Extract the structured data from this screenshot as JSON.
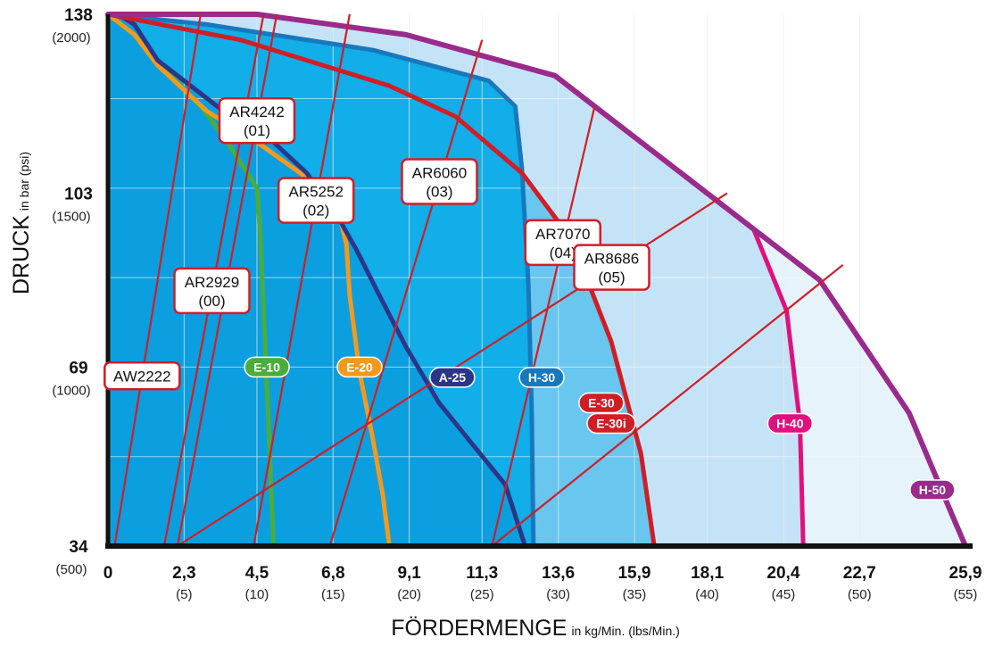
{
  "chart_data": {
    "type": "line",
    "title": "",
    "xlabel": {
      "main": "FÖRDERMENGE",
      "unit": "in kg/Min. (lbs/Min.)"
    },
    "ylabel": {
      "main": "DRUCK",
      "unit": "in bar (psi)"
    },
    "xlim": [
      0,
      25.9
    ],
    "ylim": [
      34,
      138
    ],
    "x_ticks": [
      {
        "value": 0,
        "label": "0",
        "sub": ""
      },
      {
        "value": 2.3,
        "label": "2,3",
        "sub": "(5)"
      },
      {
        "value": 4.5,
        "label": "4,5",
        "sub": "(10)"
      },
      {
        "value": 6.8,
        "label": "6,8",
        "sub": "(15)"
      },
      {
        "value": 9.1,
        "label": "9,1",
        "sub": "(20)"
      },
      {
        "value": 11.3,
        "label": "11,3",
        "sub": "(25)"
      },
      {
        "value": 13.6,
        "label": "13,6",
        "sub": "(30)"
      },
      {
        "value": 15.9,
        "label": "15,9",
        "sub": "(35)"
      },
      {
        "value": 18.1,
        "label": "18,1",
        "sub": "(40)"
      },
      {
        "value": 20.4,
        "label": "20,4",
        "sub": "(45)"
      },
      {
        "value": 22.7,
        "label": "22,7",
        "sub": "(50)"
      },
      {
        "value": 25.9,
        "label": "25,9",
        "sub": "(55)"
      }
    ],
    "y_ticks": [
      {
        "value": 138,
        "label": "138",
        "sub": "(2000)"
      },
      {
        "value": 103,
        "label": "103",
        "sub": "(1500)"
      },
      {
        "value": 69,
        "label": "69",
        "sub": "(1000)"
      },
      {
        "value": 34,
        "label": "34",
        "sub": "(500)"
      }
    ],
    "grid": true,
    "series": [
      {
        "name": "H-50",
        "color": "#9a2a8c",
        "fill": "#e6f3fb",
        "points": [
          [
            0,
            138
          ],
          [
            4.5,
            138
          ],
          [
            9,
            134
          ],
          [
            13.5,
            126
          ],
          [
            18.1,
            103
          ],
          [
            21.5,
            86
          ],
          [
            24.2,
            60
          ],
          [
            25.5,
            40
          ],
          [
            25.9,
            34
          ]
        ]
      },
      {
        "name": "H-40",
        "color": "#e0117f",
        "fill": "#c5e3f6",
        "points": [
          [
            0,
            138
          ],
          [
            4.5,
            138
          ],
          [
            9,
            134
          ],
          [
            13.5,
            126
          ],
          [
            18.1,
            103
          ],
          [
            19.5,
            96
          ],
          [
            20.5,
            80
          ],
          [
            20.9,
            58
          ],
          [
            21,
            34
          ]
        ]
      },
      {
        "name": "E-30",
        "color": "#d01e26",
        "fill": "#68c6ef",
        "points": [
          [
            0,
            138
          ],
          [
            4,
            133
          ],
          [
            8.5,
            124
          ],
          [
            10.5,
            118
          ],
          [
            12.5,
            107
          ],
          [
            14,
            94
          ],
          [
            15.2,
            74
          ],
          [
            16.1,
            52
          ],
          [
            16.5,
            34
          ]
        ]
      },
      {
        "name": "H-30",
        "color": "#1878be",
        "fill": "#11aee9",
        "points": [
          [
            0,
            138
          ],
          [
            3,
            136
          ],
          [
            8,
            131
          ],
          [
            11.5,
            125
          ],
          [
            12.3,
            120
          ],
          [
            12.5,
            108
          ],
          [
            12.7,
            85
          ],
          [
            12.8,
            60
          ],
          [
            12.85,
            34
          ]
        ]
      },
      {
        "name": "A-25",
        "color": "#2b3688",
        "fill": "#0b9fdf",
        "points": [
          [
            0.3,
            138
          ],
          [
            0.8,
            136
          ],
          [
            1.5,
            129
          ],
          [
            3.5,
            119
          ],
          [
            5,
            113
          ],
          [
            6,
            107
          ],
          [
            6.8,
            100
          ],
          [
            7.5,
            92
          ],
          [
            8.2,
            83
          ],
          [
            9,
            73
          ],
          [
            10,
            62
          ],
          [
            11,
            54
          ],
          [
            12,
            46
          ],
          [
            12.6,
            34
          ]
        ]
      },
      {
        "name": "E-20",
        "color": "#f39a1e",
        "fill": "",
        "points": [
          [
            0,
            138
          ],
          [
            0.8,
            134
          ],
          [
            1.5,
            128
          ],
          [
            3,
            119
          ],
          [
            4.5,
            113
          ],
          [
            5.8,
            107
          ],
          [
            6.9,
            101
          ],
          [
            7.2,
            93
          ],
          [
            7.3,
            83
          ],
          [
            7.6,
            68
          ],
          [
            8,
            55
          ],
          [
            8.3,
            44
          ],
          [
            8.5,
            34
          ]
        ]
      },
      {
        "name": "E-10",
        "color": "#4aad3b",
        "fill": "",
        "points": [
          [
            0,
            138
          ],
          [
            0.8,
            134
          ],
          [
            1.6,
            128
          ],
          [
            2.8,
            120
          ],
          [
            3.5,
            114
          ],
          [
            4.5,
            104
          ],
          [
            4.6,
            95
          ],
          [
            4.7,
            80
          ],
          [
            4.8,
            65
          ],
          [
            4.9,
            50
          ],
          [
            5,
            34
          ]
        ]
      }
    ],
    "nozzle_lines": [
      {
        "name": "AW2222",
        "sub": "",
        "from": [
          0.2,
          34
        ],
        "to": [
          2.8,
          138
        ]
      },
      {
        "name": "AR2929",
        "sub": "(00)",
        "from": [
          1.7,
          34
        ],
        "to": [
          4.7,
          138
        ]
      },
      {
        "name": "AR4242",
        "sub": "(01)",
        "from": [
          2.1,
          34
        ],
        "to": [
          5.1,
          138
        ]
      },
      {
        "name": "AR5252",
        "sub": "(02)",
        "from": [
          4.4,
          34
        ],
        "to": [
          7.3,
          138
        ]
      },
      {
        "name": "AR6060",
        "sub": "(03)",
        "from": [
          6.7,
          34
        ],
        "to": [
          11.3,
          133
        ]
      },
      {
        "name": "AR7070",
        "sub": "(04)",
        "from": [
          11.6,
          34
        ],
        "to": [
          14.7,
          120
        ]
      },
      {
        "name": "AR8686",
        "sub": "(05)",
        "from": [
          2.1,
          34
        ],
        "to": [
          18.7,
          103
        ]
      },
      {
        "name": "",
        "sub": "",
        "from": [
          11.6,
          34
        ],
        "to": [
          22.2,
          89
        ]
      }
    ],
    "series_labels": [
      {
        "name": "E-10",
        "at": [
          4.8,
          69
        ],
        "color": "#4aad3b"
      },
      {
        "name": "E-20",
        "at": [
          7.6,
          69
        ],
        "color": "#f39a1e"
      },
      {
        "name": "A-25",
        "at": [
          10.4,
          67
        ],
        "color": "#2b3688"
      },
      {
        "name": "H-30",
        "at": [
          13.1,
          67
        ],
        "color": "#1878be"
      },
      {
        "name": "E-30",
        "at": [
          14.9,
          62
        ],
        "color": "#d01e26"
      },
      {
        "name": "E-30i",
        "at": [
          15.2,
          58
        ],
        "color": "#d01e26"
      },
      {
        "name": "H-40",
        "at": [
          20.6,
          58
        ],
        "color": "#e0117f"
      },
      {
        "name": "H-50",
        "at": [
          24.9,
          45
        ],
        "color": "#9a2a8c"
      }
    ]
  }
}
